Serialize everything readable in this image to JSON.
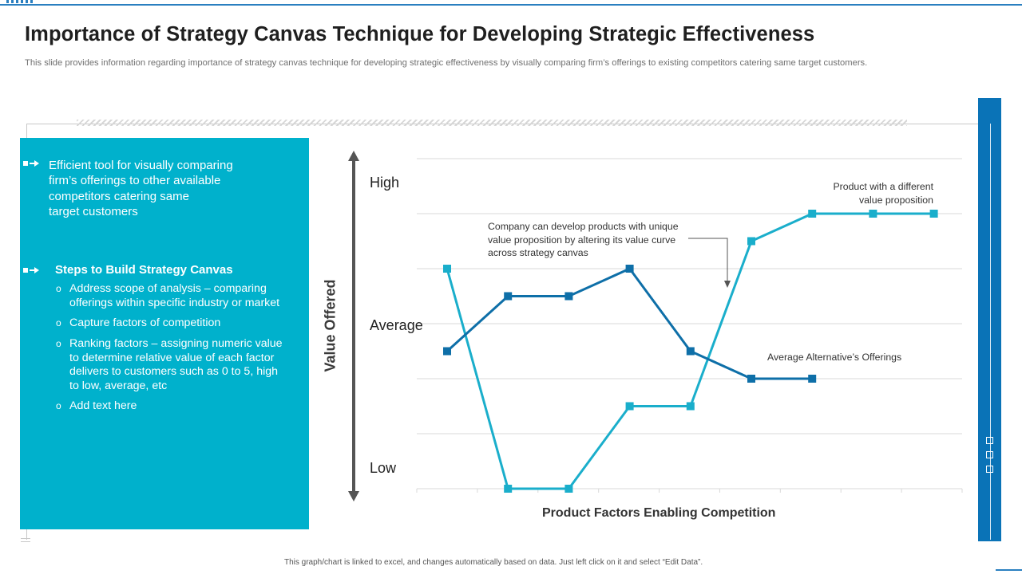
{
  "page": {
    "title": "Importance of Strategy Canvas Technique for Developing Strategic Effectiveness",
    "subtitle": "This slide provides information regarding importance of strategy canvas technique for developing strategic effectiveness by visually comparing firm’s offerings to existing competitors catering same target customers.",
    "footer": "This graph/chart is linked to excel, and changes automatically based on data. Just left click on it and select “Edit Data”."
  },
  "panel": {
    "intro_lines": [
      "Efficient tool for visually  comparing",
      "firm’s offerings to other available",
      "competitors catering same",
      "target customers"
    ],
    "steps_title": "Steps to Build Strategy Canvas",
    "bullet_glyph": "o",
    "steps": [
      "Address scope of analysis – comparing offerings within specific industry or market",
      "Capture factors of competition",
      "Ranking factors – assigning numeric value to determine relative value of each factor delivers to customers such as 0 to 5, high to low, average, etc",
      "Add text here"
    ]
  },
  "colors": {
    "panel": "#00b1cc",
    "accent_bar": "#0a73b7",
    "series_company": "#1aaecb",
    "series_alternative": "#0e6fa8",
    "gridline": "#d9d9d9",
    "axis_arrow": "#555555"
  },
  "chart_data": {
    "type": "line",
    "xlabel": "Product Factors Enabling Competition",
    "ylabel": "Value Offered",
    "y_levels": {
      "high": "High",
      "average": "Average",
      "low": "Low"
    },
    "ylim": [
      0,
      6
    ],
    "grid": true,
    "series": [
      {
        "values": [
          4,
          0,
          0,
          1.5,
          1.5,
          4.5,
          5,
          5,
          5
        ]
      },
      {
        "values": [
          2.5,
          3.5,
          3.5,
          4,
          2.5,
          2,
          2
        ]
      }
    ],
    "annotations": {
      "unique": [
        "Company can develop  products with unique",
        "value  proposition  by altering  its value  curve",
        "across strategy canvas"
      ],
      "different": [
        "Product with  a different",
        "value  proposition"
      ],
      "alternative": "Average  Alternative’s  Offerings"
    }
  }
}
